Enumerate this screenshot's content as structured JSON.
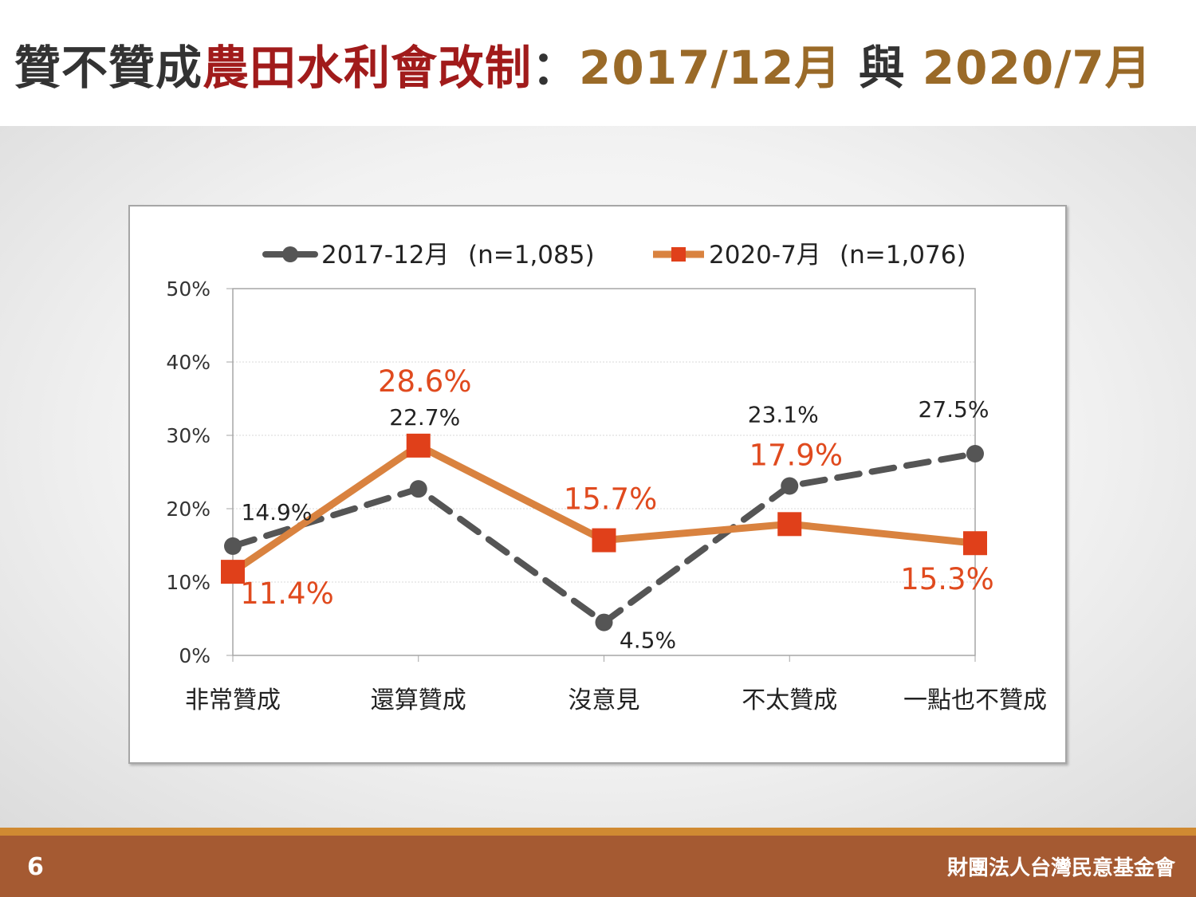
{
  "slide": {
    "title_part1": "贊不贊成",
    "title_part2": "農田水利會改制",
    "title_part3": "：",
    "title_part4": "2017/12月",
    "title_part5": " 與 ",
    "title_part6": "2020/7月",
    "page_number": "6",
    "organization": "財團法人台灣民意基金會"
  },
  "chart_data": {
    "type": "line",
    "title": "",
    "xlabel": "",
    "ylabel": "",
    "categories": [
      "非常贊成",
      "還算贊成",
      "沒意見",
      "不太贊成",
      "一點也不贊成"
    ],
    "y_ticks": [
      "0%",
      "10%",
      "20%",
      "30%",
      "40%",
      "50%"
    ],
    "ylim": [
      0,
      50
    ],
    "grid": true,
    "legend_position": "top",
    "series": [
      {
        "name": "2017-12月",
        "legend_note": "(n=1,085)",
        "values": [
          14.9,
          22.7,
          4.5,
          23.1,
          27.5
        ],
        "labels": [
          "14.9%",
          "22.7%",
          "4.5%",
          "23.1%",
          "27.5%"
        ],
        "color": "#555555",
        "style": "dashed",
        "marker": "circle"
      },
      {
        "name": "2020-7月",
        "legend_note": "(n=1,076)",
        "values": [
          11.4,
          28.6,
          15.7,
          17.9,
          15.3
        ],
        "labels": [
          "11.4%",
          "28.6%",
          "15.7%",
          "17.9%",
          "15.3%"
        ],
        "color": "#d9823f",
        "marker_color": "#e0401a",
        "label_color": "#e04a1e",
        "style": "solid",
        "marker": "square"
      }
    ]
  }
}
